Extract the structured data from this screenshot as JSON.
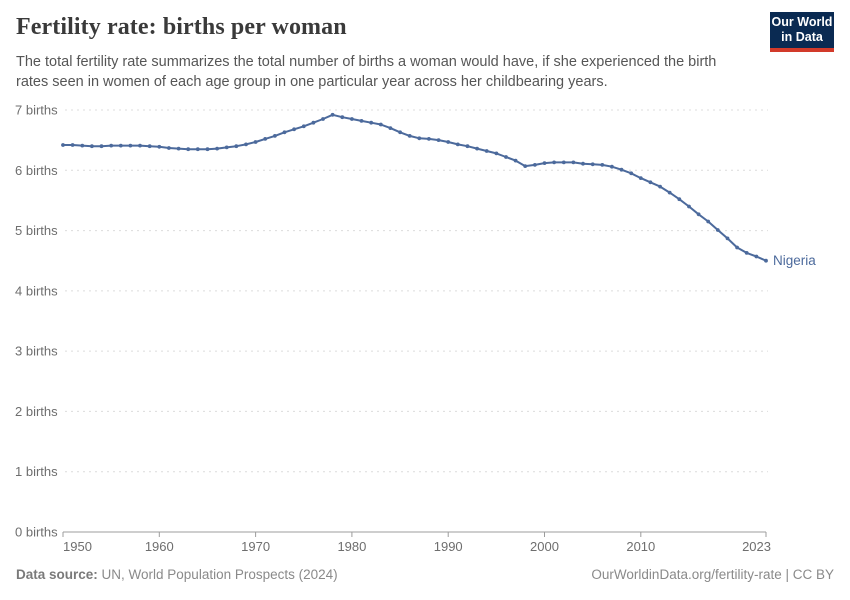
{
  "header": {
    "title": "Fertility rate: births per woman",
    "subtitle_line1": "The total fertility rate summarizes the total number of births a woman would have, if she experienced the birth",
    "subtitle_line2": "rates seen in women of each age group in one particular year across her childbearing years.",
    "logo": {
      "line1": "Our World",
      "line2": "in Data",
      "bg_color": "#0a2a52",
      "accent_color": "#d23a2a"
    }
  },
  "footer": {
    "source_label": "Data source:",
    "source_value": " UN, World Population Prospects (2024)",
    "credit": "OurWorldinData.org/fertility-rate | CC BY"
  },
  "chart_data": {
    "type": "line",
    "title": "Fertility rate: births per woman",
    "xlabel": "",
    "ylabel": "",
    "ylim": [
      0,
      7
    ],
    "ytick_values": [
      0,
      1,
      2,
      3,
      4,
      5,
      6,
      7
    ],
    "ytick_labels": [
      "0 births",
      "1 births",
      "2 births",
      "3 births",
      "4 births",
      "5 births",
      "6 births",
      "7 births"
    ],
    "xticks": [
      1950,
      1960,
      1970,
      1980,
      1990,
      2000,
      2010,
      2023
    ],
    "grid": "horizontal-dashed",
    "legend": "inline-end-label",
    "colors": {
      "grid": "#dcdcdc",
      "axis": "#9c9c9c",
      "tick_text": "#6e6e6e"
    },
    "x": [
      1950,
      1951,
      1952,
      1953,
      1954,
      1955,
      1956,
      1957,
      1958,
      1959,
      1960,
      1961,
      1962,
      1963,
      1964,
      1965,
      1966,
      1967,
      1968,
      1969,
      1970,
      1971,
      1972,
      1973,
      1974,
      1975,
      1976,
      1977,
      1978,
      1979,
      1980,
      1981,
      1982,
      1983,
      1984,
      1985,
      1986,
      1987,
      1988,
      1989,
      1990,
      1991,
      1992,
      1993,
      1994,
      1995,
      1996,
      1997,
      1998,
      1999,
      2000,
      2001,
      2002,
      2003,
      2004,
      2005,
      2006,
      2007,
      2008,
      2009,
      2010,
      2011,
      2012,
      2013,
      2014,
      2015,
      2016,
      2017,
      2018,
      2019,
      2020,
      2021,
      2022,
      2023
    ],
    "series": [
      {
        "name": "Nigeria",
        "color": "#4c6a9c",
        "values": [
          6.42,
          6.42,
          6.41,
          6.4,
          6.4,
          6.41,
          6.41,
          6.41,
          6.41,
          6.4,
          6.39,
          6.37,
          6.36,
          6.35,
          6.35,
          6.35,
          6.36,
          6.38,
          6.4,
          6.43,
          6.47,
          6.52,
          6.57,
          6.63,
          6.68,
          6.73,
          6.79,
          6.85,
          6.92,
          6.88,
          6.85,
          6.82,
          6.79,
          6.76,
          6.7,
          6.63,
          6.57,
          6.53,
          6.52,
          6.5,
          6.47,
          6.43,
          6.4,
          6.36,
          6.32,
          6.28,
          6.22,
          6.16,
          6.07,
          6.09,
          6.12,
          6.13,
          6.13,
          6.13,
          6.11,
          6.1,
          6.09,
          6.06,
          6.01,
          5.95,
          5.87,
          5.8,
          5.73,
          5.63,
          5.52,
          5.4,
          5.27,
          5.15,
          5.01,
          4.87,
          4.72,
          4.63,
          4.57,
          4.5
        ]
      }
    ]
  }
}
